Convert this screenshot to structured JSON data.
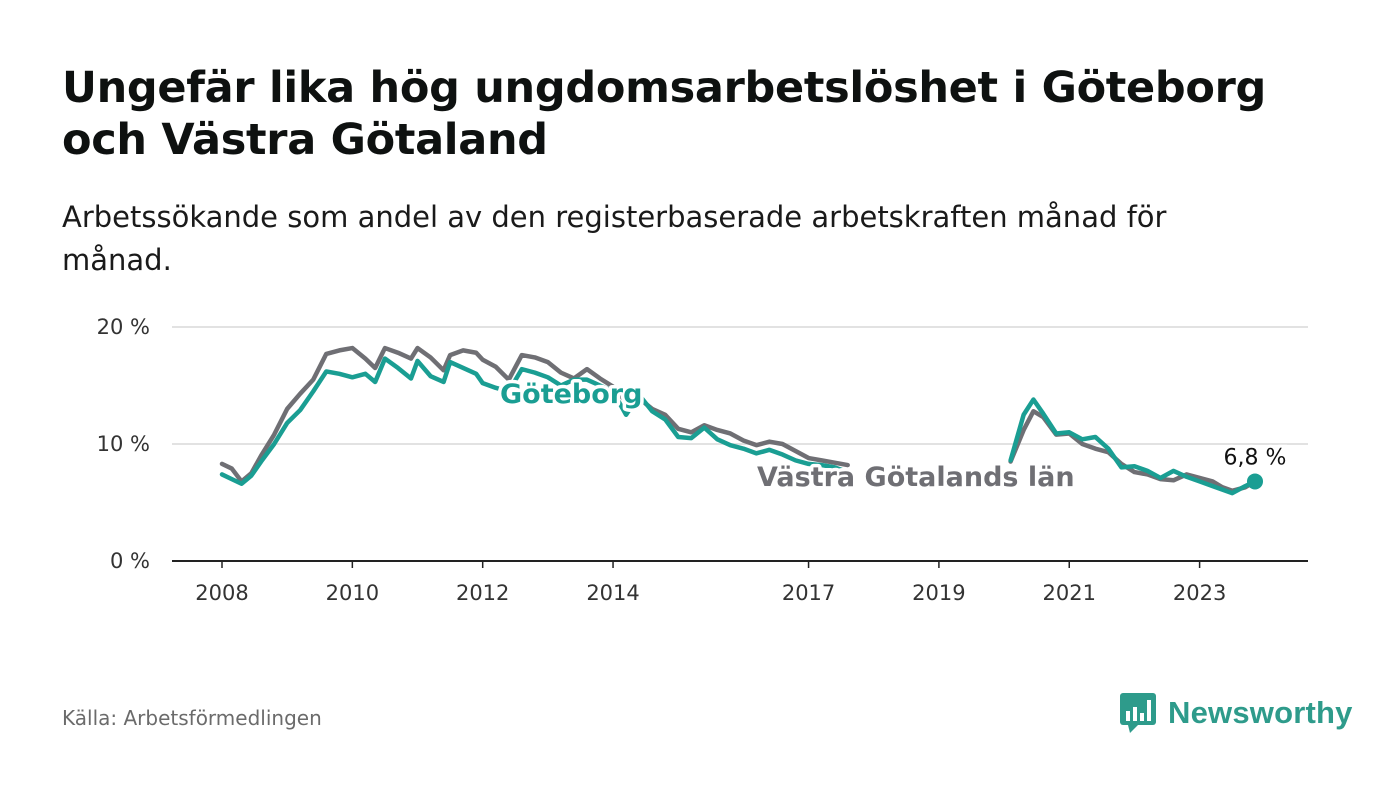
{
  "header": {
    "title": "Ungefär lika hög ungdomsarbetslöshet i Göteborg och Västra Götaland",
    "subtitle": "Arbetssökande som andel av den registerbaserade arbetskraften månad för månad."
  },
  "footer": {
    "source": "Källa: Arbetsförmedlingen",
    "brand": "Newsworthy",
    "brand_icon": "bar-chart-logo-icon"
  },
  "colors": {
    "goteborg": "#1a9e93",
    "vastra": "#6f6f74",
    "grid": "#d9d9d9",
    "axis": "#222222",
    "brand": "#2e9b8b"
  },
  "chart_data": {
    "type": "line",
    "title": "Ungefär lika hög ungdomsarbetslöshet i Göteborg och Västra Götaland",
    "xlabel": "",
    "ylabel": "",
    "ylim": [
      0,
      20
    ],
    "xlim": [
      2007.5,
      2024.8
    ],
    "y_ticks": [
      0,
      10,
      20
    ],
    "y_tick_labels": [
      "0 %",
      "10 %",
      "20 %"
    ],
    "x_ticks": [
      2008,
      2010,
      2012,
      2014,
      2017,
      2019,
      2021,
      2023
    ],
    "x_tick_labels": [
      "2008",
      "2010",
      "2012",
      "2014",
      "2017",
      "2019",
      "2021",
      "2023"
    ],
    "grid": true,
    "series": [
      {
        "name": "Västra Götalands län",
        "label": "Västra Götalands län",
        "x": [
          2008.0,
          2008.15,
          2008.3,
          2008.45,
          2008.6,
          2008.8,
          2009.0,
          2009.2,
          2009.4,
          2009.6,
          2009.8,
          2010.0,
          2010.2,
          2010.35,
          2010.5,
          2010.7,
          2010.9,
          2011.0,
          2011.2,
          2011.4,
          2011.5,
          2011.7,
          2011.9,
          2012.0,
          2012.2,
          2012.4,
          2012.6,
          2012.8,
          2013.0,
          2013.2,
          2013.4,
          2013.6,
          2013.8,
          2014.0,
          2014.2,
          2014.4,
          2014.6,
          2014.8,
          2015.0,
          2015.2,
          2015.4,
          2015.6,
          2015.8,
          2016.0,
          2016.2,
          2016.4,
          2016.6,
          2016.8,
          2017.0,
          2017.2,
          2017.4,
          2017.6,
          2020.1,
          2020.3,
          2020.45,
          2020.6,
          2020.8,
          2021.0,
          2021.2,
          2021.4,
          2021.6,
          2021.8,
          2022.0,
          2022.2,
          2022.4,
          2022.6,
          2022.8,
          2023.0,
          2023.2,
          2023.35,
          2023.5,
          2023.7,
          2023.85
        ],
        "values": [
          8.3,
          7.9,
          6.8,
          7.5,
          9.0,
          10.8,
          13.0,
          14.3,
          15.5,
          17.7,
          18.0,
          18.2,
          17.3,
          16.5,
          18.2,
          17.8,
          17.3,
          18.2,
          17.4,
          16.3,
          17.6,
          18.0,
          17.8,
          17.2,
          16.6,
          15.5,
          17.6,
          17.4,
          17.0,
          16.1,
          15.6,
          16.4,
          15.6,
          14.9,
          13.6,
          13.9,
          13.0,
          12.5,
          11.3,
          11.0,
          11.6,
          11.2,
          10.9,
          10.3,
          9.9,
          10.2,
          10.0,
          9.4,
          8.8,
          8.6,
          8.4,
          8.2,
          8.5,
          11.2,
          12.8,
          12.3,
          10.8,
          10.9,
          10.0,
          9.6,
          9.3,
          8.3,
          7.6,
          7.4,
          7.0,
          6.9,
          7.4,
          7.1,
          6.8,
          6.3,
          6.0,
          6.3,
          6.8
        ]
      },
      {
        "name": "Göteborg",
        "label": "Göteborg",
        "x": [
          2008.0,
          2008.15,
          2008.3,
          2008.45,
          2008.6,
          2008.8,
          2009.0,
          2009.2,
          2009.4,
          2009.6,
          2009.8,
          2010.0,
          2010.2,
          2010.35,
          2010.5,
          2010.7,
          2010.9,
          2011.0,
          2011.2,
          2011.4,
          2011.5,
          2011.7,
          2011.9,
          2012.0,
          2012.2,
          2012.4,
          2012.6,
          2012.8,
          2013.0,
          2013.2,
          2013.4,
          2013.6,
          2013.8,
          2014.0,
          2014.2,
          2014.4,
          2014.6,
          2014.8,
          2015.0,
          2015.2,
          2015.4,
          2015.6,
          2015.8,
          2016.0,
          2016.2,
          2016.4,
          2016.6,
          2016.8,
          2017.0,
          2017.2,
          2017.4,
          2017.6,
          2020.1,
          2020.3,
          2020.45,
          2020.6,
          2020.8,
          2021.0,
          2021.2,
          2021.4,
          2021.6,
          2021.8,
          2022.0,
          2022.2,
          2022.4,
          2022.6,
          2022.8,
          2023.0,
          2023.2,
          2023.35,
          2023.5,
          2023.7,
          2023.85
        ],
        "values": [
          7.4,
          7.0,
          6.6,
          7.3,
          8.5,
          10.0,
          11.8,
          12.9,
          14.5,
          16.2,
          16.0,
          15.7,
          16.0,
          15.3,
          17.3,
          16.5,
          15.6,
          17.1,
          15.8,
          15.3,
          17.0,
          16.5,
          16.0,
          15.2,
          14.8,
          14.5,
          16.4,
          16.1,
          15.7,
          15.0,
          15.5,
          15.5,
          15.0,
          14.5,
          12.5,
          14.2,
          12.8,
          12.1,
          10.6,
          10.5,
          11.4,
          10.4,
          9.9,
          9.6,
          9.2,
          9.5,
          9.1,
          8.6,
          8.3,
          8.2,
          8.0,
          7.6,
          8.6,
          12.5,
          13.8,
          12.6,
          10.9,
          11.0,
          10.4,
          10.6,
          9.6,
          8.0,
          8.1,
          7.7,
          7.1,
          7.7,
          7.2,
          6.8,
          6.4,
          6.1,
          5.8,
          6.4,
          6.8
        ]
      }
    ],
    "annotations": [
      {
        "text": "6,8 %",
        "x": 2023.85,
        "y": 6.8
      }
    ]
  }
}
